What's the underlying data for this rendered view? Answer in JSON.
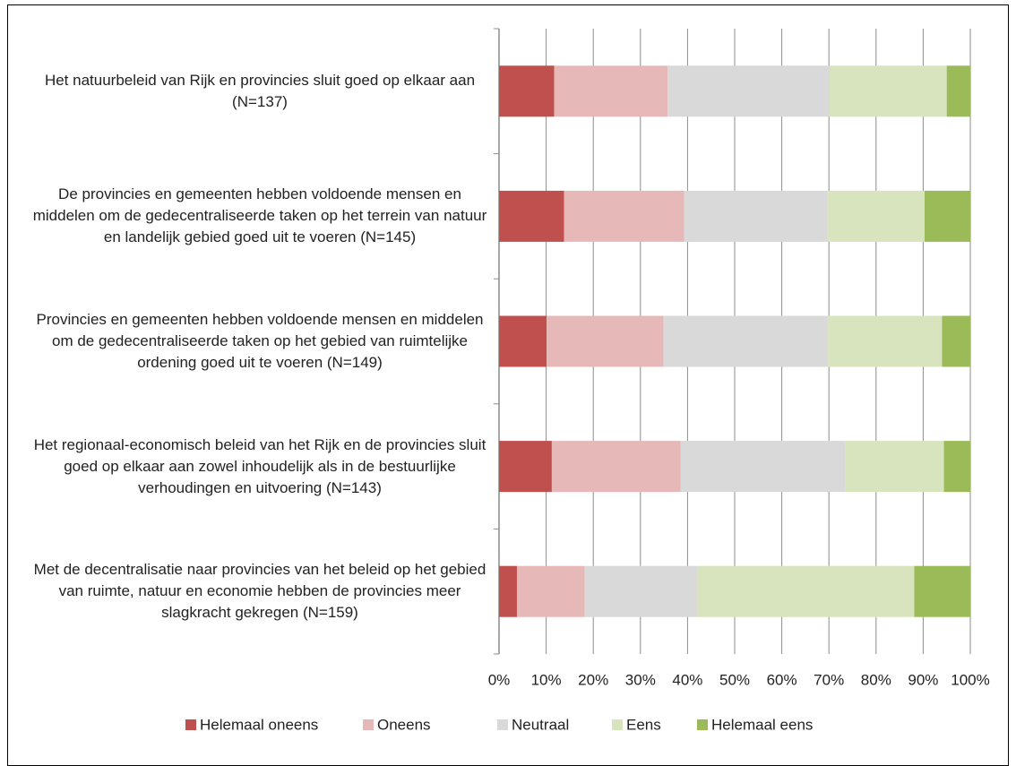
{
  "chart_data": {
    "type": "stacked_barh",
    "categories": [
      "Het natuurbeleid van Rijk en provincies sluit goed op elkaar aan (N=137)",
      "De provincies en gemeenten hebben voldoende mensen en middelen om de gedecentraliseerde taken op het terrein van natuur en landelijk gebied goed uit te voeren (N=145)",
      "Provincies en gemeenten hebben voldoende mensen en middelen om de gedecentraliseerde taken op het gebied van ruimtelijke ordening goed uit te voeren (N=149)",
      "Het regionaal-economisch beleid van het Rijk en de provincies sluit goed op elkaar aan zowel inhoudelijk als in de bestuurlijke verhoudingen en uitvoering (N=143)",
      "Met de decentralisatie naar provincies van het beleid op het gebied van ruimte, natuur en economie hebben de provincies meer slagkracht gekregen (N=159)"
    ],
    "series": [
      {
        "name": "Helemaal oneens",
        "color": "#c0504d",
        "values": [
          11.7,
          13.8,
          10.1,
          11.2,
          3.8
        ]
      },
      {
        "name": "Oneens",
        "color": "#e6b9b8",
        "values": [
          24.1,
          25.5,
          24.8,
          27.3,
          14.4
        ]
      },
      {
        "name": "Neutraal",
        "color": "#d9d9d9",
        "values": [
          34.3,
          30.4,
          34.9,
          34.9,
          23.9
        ]
      },
      {
        "name": "Eens",
        "color": "#d7e4bd",
        "values": [
          24.9,
          20.6,
          24.2,
          21.0,
          46.0
        ]
      },
      {
        "name": "Helemaal eens",
        "color": "#9bbb59",
        "values": [
          5.0,
          9.7,
          6.0,
          5.6,
          11.9
        ]
      }
    ],
    "xlim": [
      0,
      100
    ],
    "xticks": [
      {
        "value": 0,
        "label": "0%"
      },
      {
        "value": 10,
        "label": "10%"
      },
      {
        "value": 20,
        "label": "20%"
      },
      {
        "value": 30,
        "label": "30%"
      },
      {
        "value": 40,
        "label": "40%"
      },
      {
        "value": 50,
        "label": "50%"
      },
      {
        "value": 60,
        "label": "60%"
      },
      {
        "value": 70,
        "label": "70%"
      },
      {
        "value": 80,
        "label": "80%"
      },
      {
        "value": 90,
        "label": "90%"
      },
      {
        "value": 100,
        "label": "100%"
      }
    ],
    "grid": true,
    "legend": "bottom"
  }
}
